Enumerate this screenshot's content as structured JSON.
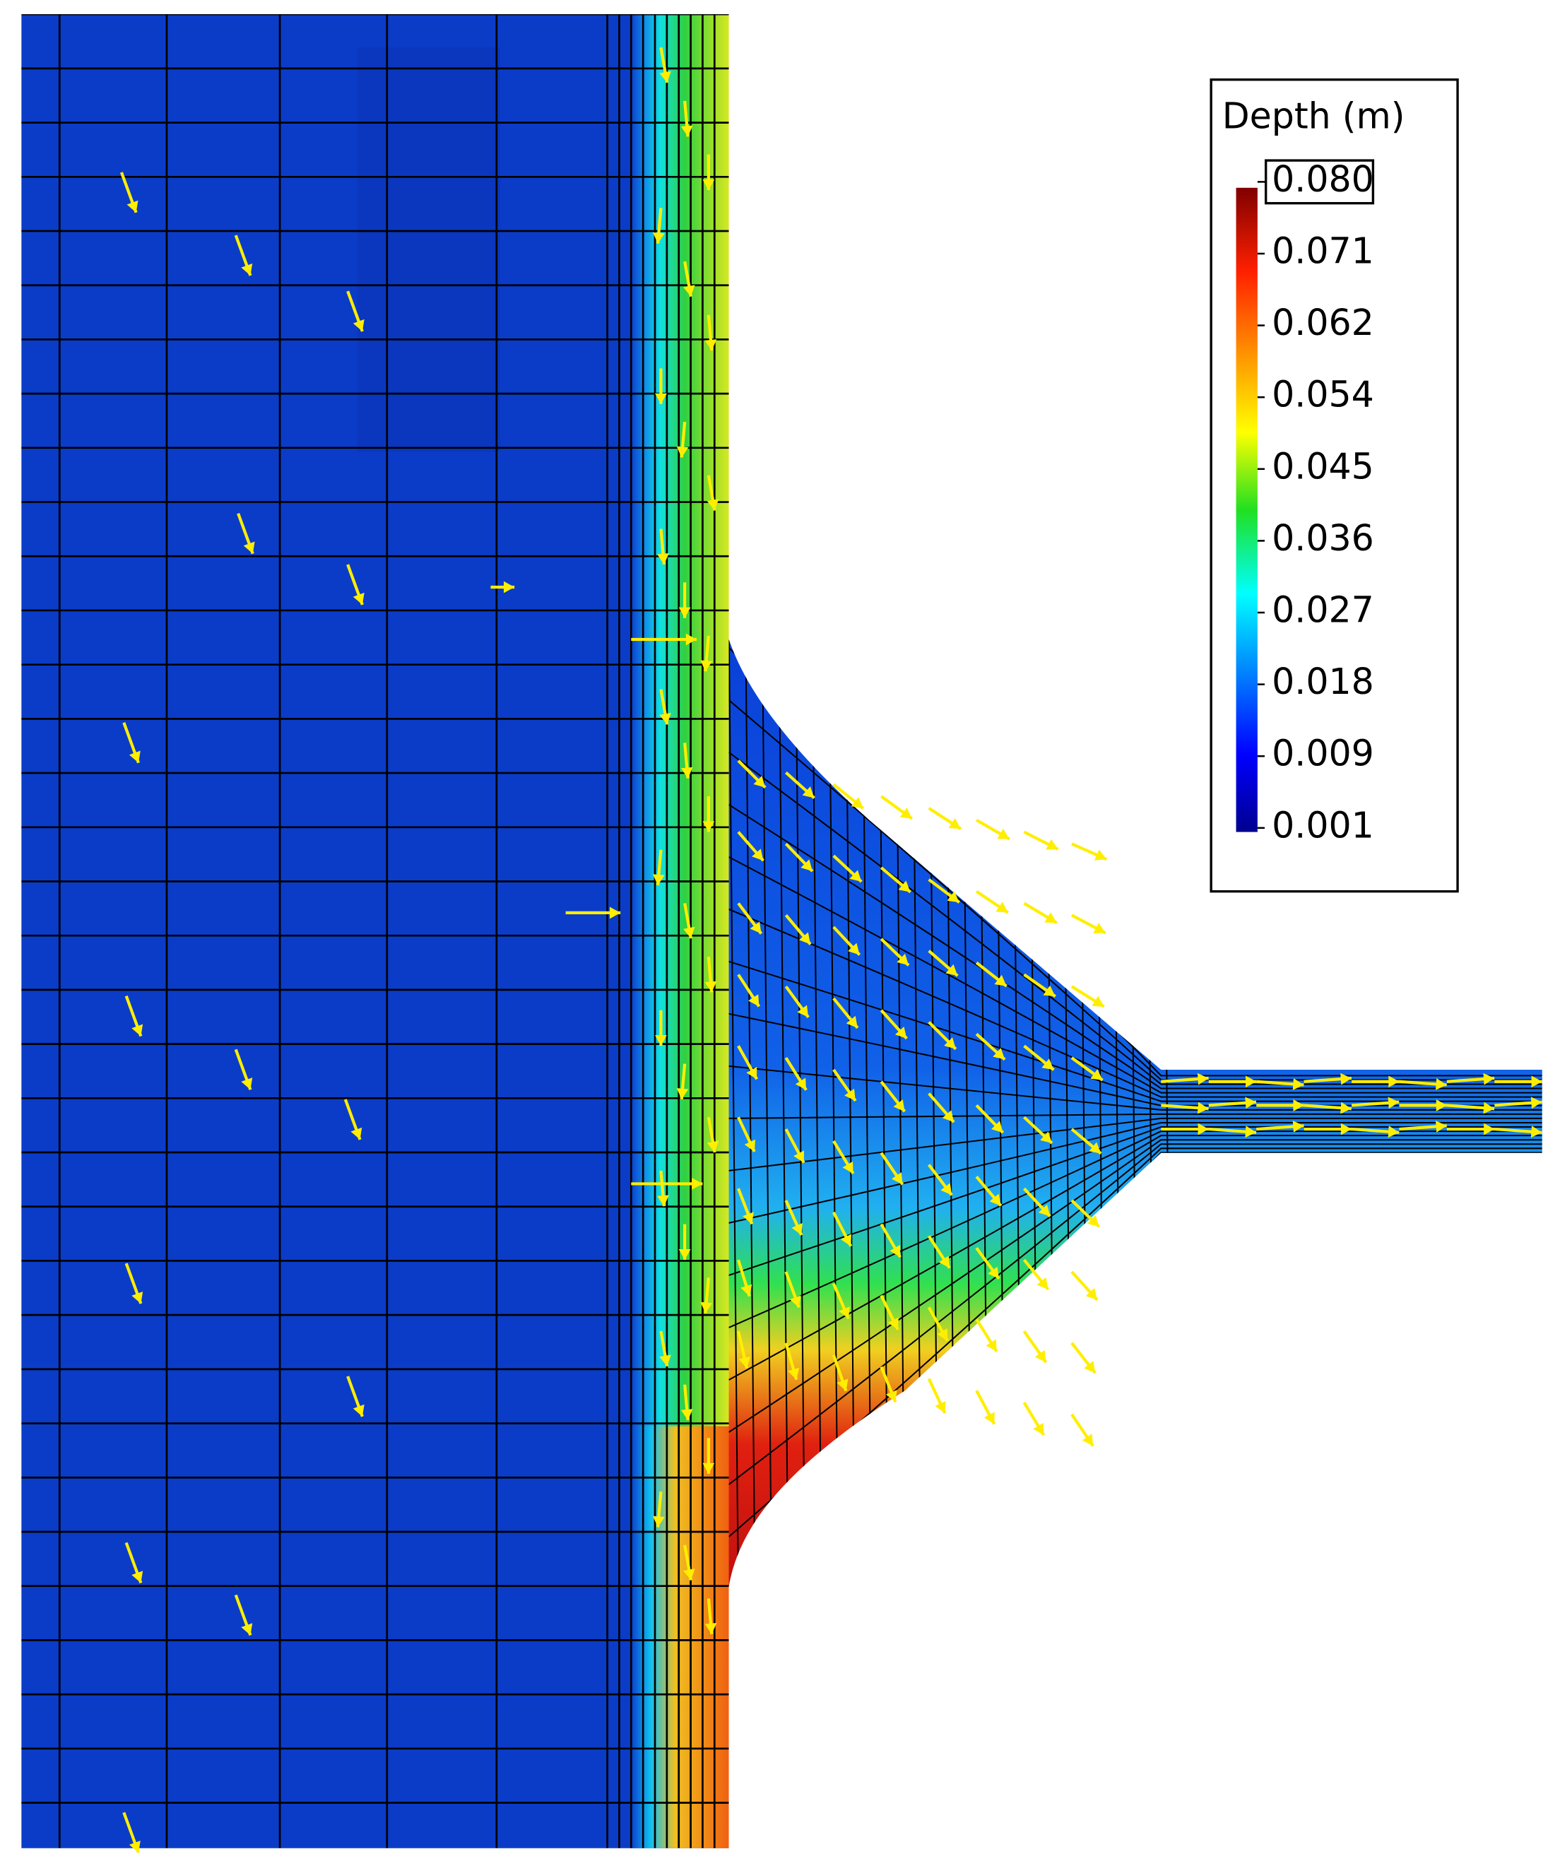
{
  "legend": {
    "title": "Depth (m)",
    "labels": [
      "0.080",
      "0.071",
      "0.062",
      "0.054",
      "0.045",
      "0.036",
      "0.027",
      "0.018",
      "0.009",
      "0.001"
    ]
  }
}
